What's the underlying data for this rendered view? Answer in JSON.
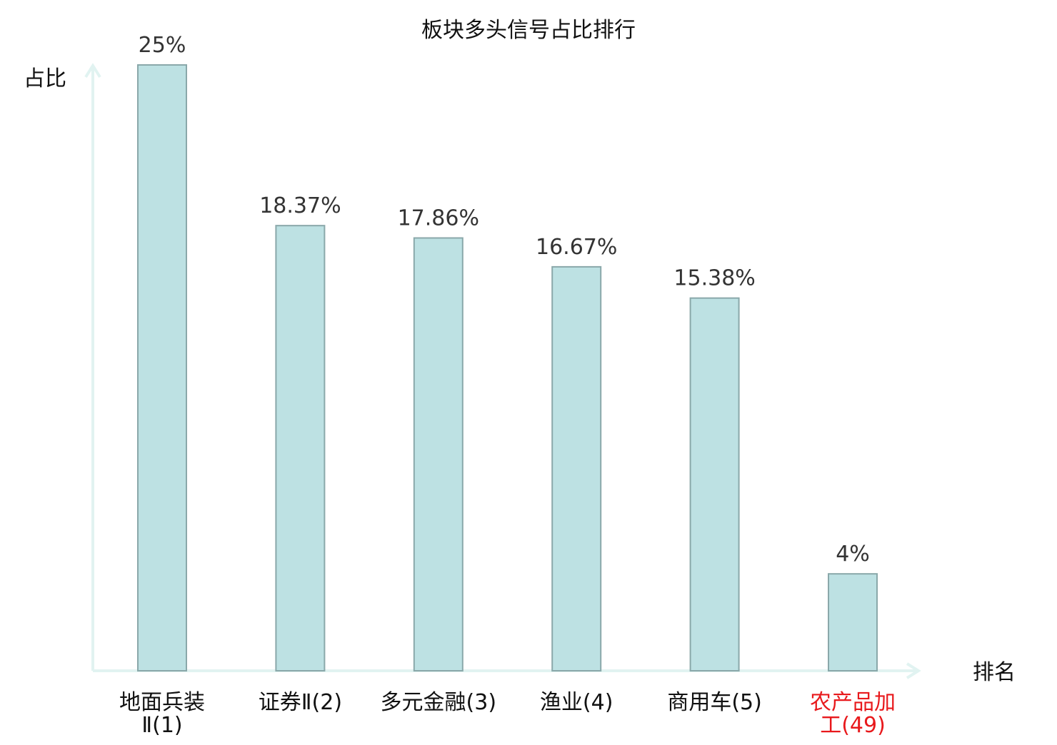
{
  "chart_data": {
    "type": "bar",
    "title": "板块多头信号占比排行",
    "ylabel": "占比",
    "xlabel": "排名",
    "categories": [
      [
        "地面兵装",
        "Ⅱ(1)"
      ],
      [
        "证券Ⅱ(2)"
      ],
      [
        "多元金融(3)"
      ],
      [
        "渔业(4)"
      ],
      [
        "商用车(5)"
      ],
      [
        "农产品加",
        "工(49)"
      ]
    ],
    "values": [
      25,
      18.37,
      17.86,
      16.67,
      15.38,
      4
    ],
    "value_labels": [
      "25%",
      "18.37%",
      "17.86%",
      "16.67%",
      "15.38%",
      "4%"
    ],
    "highlight": [
      false,
      false,
      false,
      false,
      false,
      true
    ],
    "ylim": [
      0,
      25
    ],
    "grid": false,
    "legend": "none",
    "colors": {
      "bar_fill": "#bde1e3",
      "bar_stroke": "#8aa8aa",
      "axis": "#e1f3f1",
      "text": "#333333",
      "label": "#111111",
      "highlight": "#e8191c"
    }
  }
}
